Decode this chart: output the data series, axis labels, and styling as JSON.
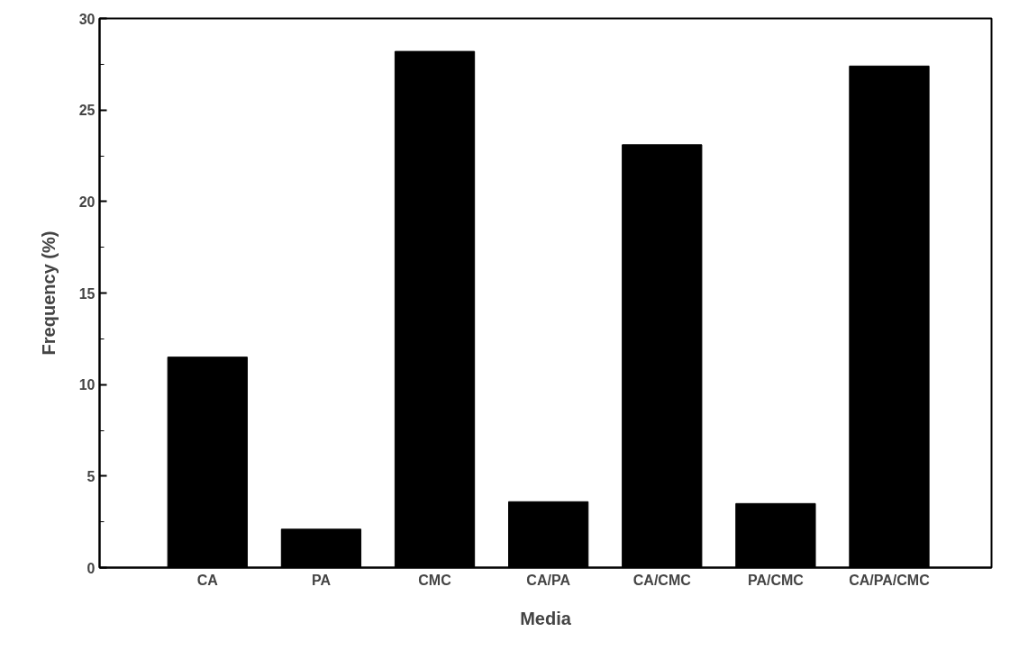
{
  "chart_data": {
    "type": "bar",
    "xlabel": "Media",
    "ylabel": "Frequency (%)",
    "categories": [
      "CA",
      "PA",
      "CMC",
      "CA/PA",
      "CA/CMC",
      "PA/CMC",
      "CA/PA/CMC"
    ],
    "values": [
      11.5,
      2.1,
      28.2,
      3.6,
      23.1,
      3.5,
      27.4
    ],
    "color": "#000000",
    "ylim": [
      0,
      30
    ],
    "yticks": [
      0,
      5,
      10,
      15,
      20,
      25,
      30
    ],
    "grid": false
  }
}
